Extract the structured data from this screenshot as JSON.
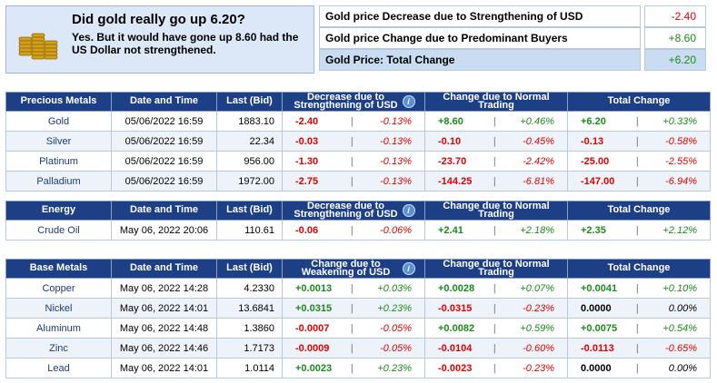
{
  "hero": {
    "title": "Did gold really go up 6.20?",
    "text": "Yes. But it would have gone up 8.60 had the US Dollar not strengthened."
  },
  "summary": [
    {
      "label": "Gold price Decrease due to Strengthening of USD",
      "value": "-2.40",
      "tone": "neg"
    },
    {
      "label": "Gold price Change due to Predominant Buyers",
      "value": "+8.60",
      "tone": "pos"
    },
    {
      "label": "Gold Price: Total Change",
      "value": "+6.20",
      "tone": "pos"
    }
  ],
  "precious": {
    "headers": [
      "Precious Metals",
      "Date and Time",
      "Last (Bid)",
      "Decrease due to Strengthening of USD",
      "Change due to Normal Trading",
      "Total Change"
    ],
    "rows": [
      {
        "name": "Gold",
        "time": "05/06/2022 16:59",
        "bid": "1883.10",
        "usd": "-2.40",
        "usdp": "-0.13%",
        "trade": "+8.60",
        "tradep": "+0.46%",
        "total": "+6.20",
        "totalp": "+0.33%",
        "usdt": "neg",
        "tradet": "pos",
        "totalt": "pos"
      },
      {
        "name": "Silver",
        "time": "05/06/2022 16:59",
        "bid": "22.34",
        "usd": "-0.03",
        "usdp": "-0.13%",
        "trade": "-0.10",
        "tradep": "-0.45%",
        "total": "-0.13",
        "totalp": "-0.58%",
        "usdt": "neg",
        "tradet": "neg",
        "totalt": "neg"
      },
      {
        "name": "Platinum",
        "time": "05/06/2022 16:59",
        "bid": "956.00",
        "usd": "-1.30",
        "usdp": "-0.13%",
        "trade": "-23.70",
        "tradep": "-2.42%",
        "total": "-25.00",
        "totalp": "-2.55%",
        "usdt": "neg",
        "tradet": "neg",
        "totalt": "neg"
      },
      {
        "name": "Palladium",
        "time": "05/06/2022 16:59",
        "bid": "1972.00",
        "usd": "-2.75",
        "usdp": "-0.13%",
        "trade": "-144.25",
        "tradep": "-6.81%",
        "total": "-147.00",
        "totalp": "-6.94%",
        "usdt": "neg",
        "tradet": "neg",
        "totalt": "neg"
      }
    ]
  },
  "energy": {
    "headers": [
      "Energy",
      "Date and Time",
      "Last (Bid)",
      "Decrease due to Strengthening of USD",
      "Change due to Normal Trading",
      "Total Change"
    ],
    "rows": [
      {
        "name": "Crude Oil",
        "time": "May 06, 2022 20:06",
        "bid": "110.61",
        "usd": "-0.06",
        "usdp": "-0.06%",
        "trade": "+2.41",
        "tradep": "+2.18%",
        "total": "+2.35",
        "totalp": "+2.12%",
        "usdt": "neg",
        "tradet": "pos",
        "totalt": "pos"
      }
    ]
  },
  "base": {
    "headers": [
      "Base Metals",
      "Date and Time",
      "Last (Bid)",
      "Change due to Weakening of USD",
      "Change due to Normal Trading",
      "Total Change"
    ],
    "rows": [
      {
        "name": "Copper",
        "time": "May 06, 2022 14:28",
        "bid": "4.2330",
        "usd": "+0.0013",
        "usdp": "+0.03%",
        "trade": "+0.0028",
        "tradep": "+0.07%",
        "total": "+0.0041",
        "totalp": "+0.10%",
        "usdt": "pos",
        "tradet": "pos",
        "totalt": "pos"
      },
      {
        "name": "Nickel",
        "time": "May 06, 2022 14:01",
        "bid": "13.6841",
        "usd": "+0.0315",
        "usdp": "+0.23%",
        "trade": "-0.0315",
        "tradep": "-0.23%",
        "total": "0.0000",
        "totalp": "0.00%",
        "usdt": "pos",
        "tradet": "neg",
        "totalt": "blk"
      },
      {
        "name": "Aluminum",
        "time": "May 06, 2022 14:48",
        "bid": "1.3860",
        "usd": "-0.0007",
        "usdp": "-0.05%",
        "trade": "+0.0082",
        "tradep": "+0.59%",
        "total": "+0.0075",
        "totalp": "+0.54%",
        "usdt": "neg",
        "tradet": "pos",
        "totalt": "pos"
      },
      {
        "name": "Zinc",
        "time": "May 06, 2022 14:46",
        "bid": "1.7173",
        "usd": "-0.0009",
        "usdp": "-0.05%",
        "trade": "-0.0104",
        "tradep": "-0.60%",
        "total": "-0.0113",
        "totalp": "-0.65%",
        "usdt": "neg",
        "tradet": "neg",
        "totalt": "neg"
      },
      {
        "name": "Lead",
        "time": "May 06, 2022 14:01",
        "bid": "1.0114",
        "usd": "+0.0023",
        "usdp": "+0.23%",
        "trade": "-0.0023",
        "tradep": "-0.23%",
        "total": "0.0000",
        "totalp": "0.00%",
        "usdt": "pos",
        "tradet": "neg",
        "totalt": "blk"
      }
    ]
  },
  "icons": {
    "info": "info-icon",
    "coins": "gold-coins-icon"
  },
  "colors": {
    "header_bg": "#1d3f86",
    "negative": "#e00000",
    "positive": "#1a8a1a",
    "hero_bg": "#dce8f7"
  }
}
